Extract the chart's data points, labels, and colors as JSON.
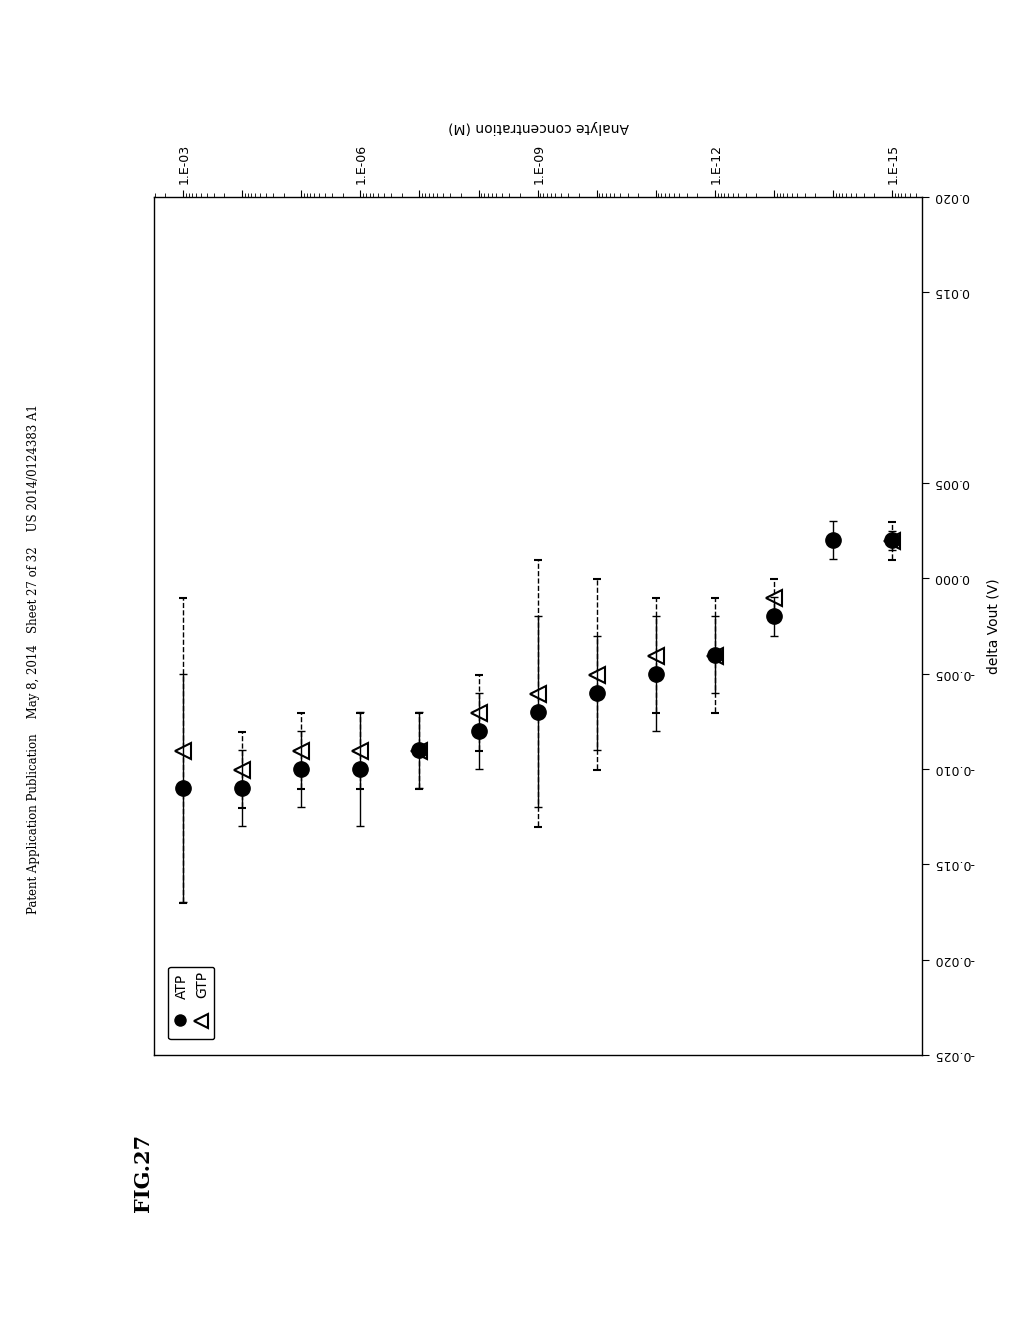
{
  "header": "Patent Application Publication    May 8, 2014   Sheet 27 of 32    US 2014/0124383 A1",
  "fig_label": "FIG.27",
  "ylabel": "Analyte concentration (M)",
  "xlabel": "delta Vout (V)",
  "atp_concentrations": [
    1e-15,
    1e-14,
    1e-13,
    1e-12,
    1e-11,
    1e-10,
    1e-09,
    1e-08,
    1e-07,
    1e-06,
    1e-05,
    0.0001,
    0.001
  ],
  "atp_values": [
    0.002,
    0.002,
    -0.002,
    -0.004,
    -0.005,
    -0.006,
    -0.007,
    -0.008,
    -0.009,
    -0.01,
    -0.01,
    -0.011,
    -0.011
  ],
  "atp_xerr_lo": [
    0.0005,
    0.001,
    0.001,
    0.002,
    0.003,
    0.003,
    0.005,
    0.002,
    0.002,
    0.003,
    0.002,
    0.002,
    0.006
  ],
  "atp_xerr_hi": [
    0.0005,
    0.001,
    0.001,
    0.002,
    0.003,
    0.003,
    0.005,
    0.002,
    0.002,
    0.003,
    0.002,
    0.002,
    0.006
  ],
  "gtp_concentrations": [
    1e-15,
    1e-13,
    1e-12,
    1e-11,
    1e-10,
    1e-09,
    1e-08,
    1e-07,
    1e-06,
    1e-05,
    0.0001,
    0.001
  ],
  "gtp_values": [
    0.002,
    -0.001,
    -0.004,
    -0.004,
    -0.005,
    -0.006,
    -0.007,
    -0.009,
    -0.009,
    -0.009,
    -0.01,
    -0.009
  ],
  "gtp_xerr_lo": [
    0.001,
    0.001,
    0.003,
    0.003,
    0.005,
    0.007,
    0.002,
    0.002,
    0.002,
    0.002,
    0.002,
    0.008
  ],
  "gtp_xerr_hi": [
    0.001,
    0.001,
    0.003,
    0.003,
    0.005,
    0.007,
    0.002,
    0.002,
    0.002,
    0.002,
    0.002,
    0.008
  ],
  "xlim": [
    -0.025,
    0.02
  ],
  "ylim_low": -15.5,
  "ylim_high": -2.5,
  "xticks": [
    0.02,
    0.015,
    0.005,
    0.0,
    -0.005,
    -0.01,
    -0.015,
    -0.02,
    -0.025
  ],
  "xtick_labels": [
    "0.020",
    "0.015",
    "0.005",
    "0.000",
    "-0.005",
    "-0.010",
    "-0.015",
    "-0.020",
    "-0.025"
  ],
  "ytick_exponents": [
    -15,
    -14,
    -13,
    -12,
    -11,
    -10,
    -9,
    -8,
    -7,
    -6,
    -5,
    -4,
    -3
  ],
  "ytick_labels": [
    "1.E-15",
    "",
    "",
    "1.E-12",
    "",
    "",
    "1.E-09",
    "",
    "",
    "1.E-06",
    "",
    "",
    "1.E-03"
  ]
}
